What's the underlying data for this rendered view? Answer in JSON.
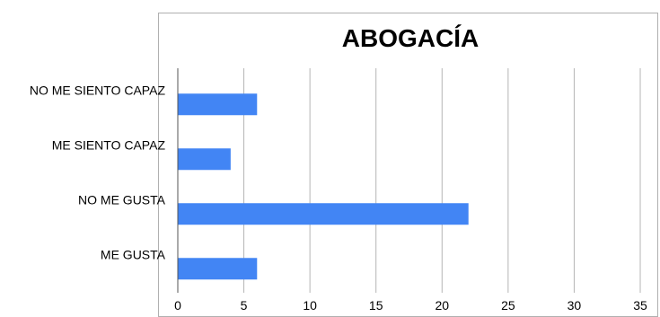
{
  "chart_data": {
    "type": "bar",
    "orientation": "horizontal",
    "title": "ABOGACÍA",
    "xlabel": "",
    "ylabel": "",
    "categories": [
      "NO ME SIENTO CAPAZ",
      "ME SIENTO CAPAZ",
      "NO ME GUSTA",
      "ME GUSTA"
    ],
    "values": [
      6,
      4,
      22,
      6
    ],
    "xlim": [
      0,
      35
    ],
    "xticks": [
      "0",
      "5",
      "10",
      "15",
      "20",
      "25",
      "30",
      "35"
    ],
    "grid": "vertical",
    "legend": "none",
    "bar_color": "#4285f4"
  }
}
